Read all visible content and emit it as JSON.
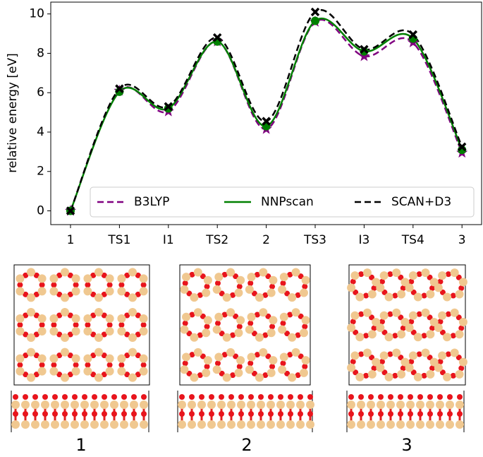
{
  "chart_data": {
    "type": "line",
    "y_label": "relative energy [eV]",
    "categories": [
      "1",
      "TS1",
      "I1",
      "TS2",
      "2",
      "TS3",
      "I3",
      "TS4",
      "3"
    ],
    "series": [
      {
        "name": "B3LYP",
        "color": "#800080",
        "linestyle": "dashed",
        "marker": "star",
        "values": [
          0,
          6.1,
          5.05,
          8.6,
          4.15,
          9.6,
          7.85,
          8.55,
          2.95
        ]
      },
      {
        "name": "NNPscan",
        "color": "#008000",
        "linestyle": "solid",
        "marker": "circle",
        "values": [
          0,
          6.05,
          5.2,
          8.6,
          4.3,
          9.65,
          8.1,
          8.75,
          3.1
        ]
      },
      {
        "name": "SCAN+D3",
        "color": "#000000",
        "linestyle": "dashed",
        "marker": "x",
        "values": [
          0,
          6.2,
          5.3,
          8.8,
          4.55,
          10.1,
          8.2,
          8.95,
          3.25
        ]
      }
    ],
    "ylim": [
      -0.7,
      10.6
    ],
    "yticks": [
      0,
      2,
      4,
      6,
      8,
      10
    ],
    "legend": "lower right"
  },
  "structures": [
    {
      "label": "1"
    },
    {
      "label": "2"
    },
    {
      "label": "3"
    }
  ]
}
